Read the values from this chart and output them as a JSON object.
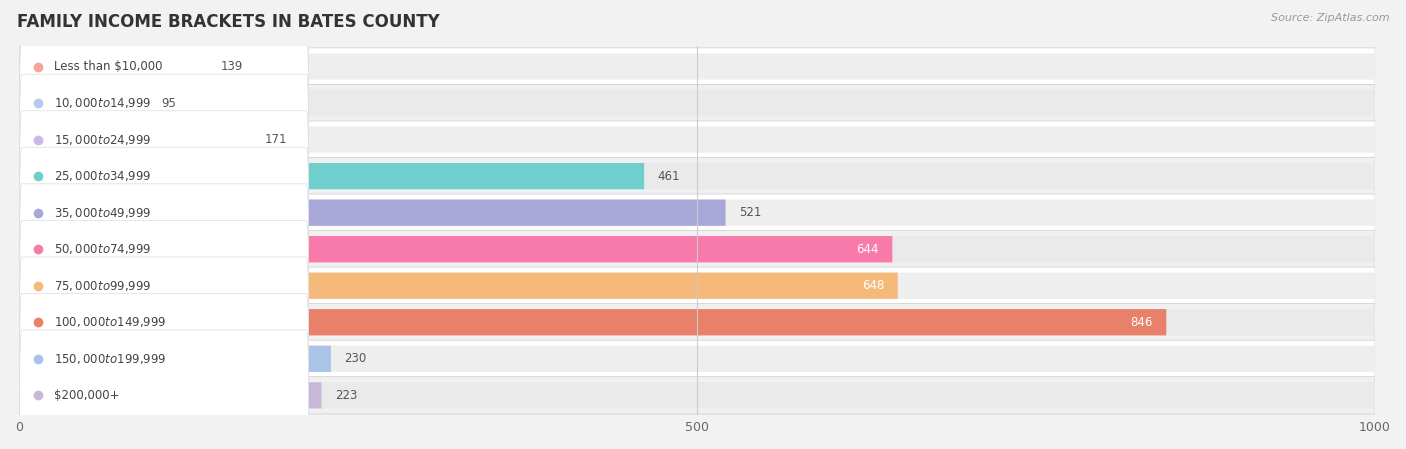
{
  "title": "FAMILY INCOME BRACKETS IN BATES COUNTY",
  "source": "Source: ZipAtlas.com",
  "categories": [
    "Less than $10,000",
    "$10,000 to $14,999",
    "$15,000 to $24,999",
    "$25,000 to $34,999",
    "$35,000 to $49,999",
    "$50,000 to $74,999",
    "$75,000 to $99,999",
    "$100,000 to $149,999",
    "$150,000 to $199,999",
    "$200,000+"
  ],
  "values": [
    139,
    95,
    171,
    461,
    521,
    644,
    648,
    846,
    230,
    223
  ],
  "bar_colors": [
    "#f4a49a",
    "#b8c9f0",
    "#c9b8e8",
    "#6ecfcc",
    "#a8a8d8",
    "#f87aaa",
    "#f5b97a",
    "#e8806a",
    "#a8c4e8",
    "#c8b8d8"
  ],
  "dot_colors": [
    "#f4a49a",
    "#b8c9f0",
    "#c9b8e8",
    "#6ecfcc",
    "#a8a8d8",
    "#f87aaa",
    "#f5b97a",
    "#e8806a",
    "#a8c4e8",
    "#c8b8d8"
  ],
  "xlim": [
    0,
    1000
  ],
  "xticks": [
    0,
    500,
    1000
  ],
  "background_color": "#f2f2f2",
  "row_colors": [
    "#ffffff",
    "#f0f0f0"
  ],
  "bar_bg_color": "#e8e8e8",
  "title_fontsize": 12,
  "label_fontsize": 8.5,
  "value_fontsize": 8.5,
  "white_text_threshold": 560
}
